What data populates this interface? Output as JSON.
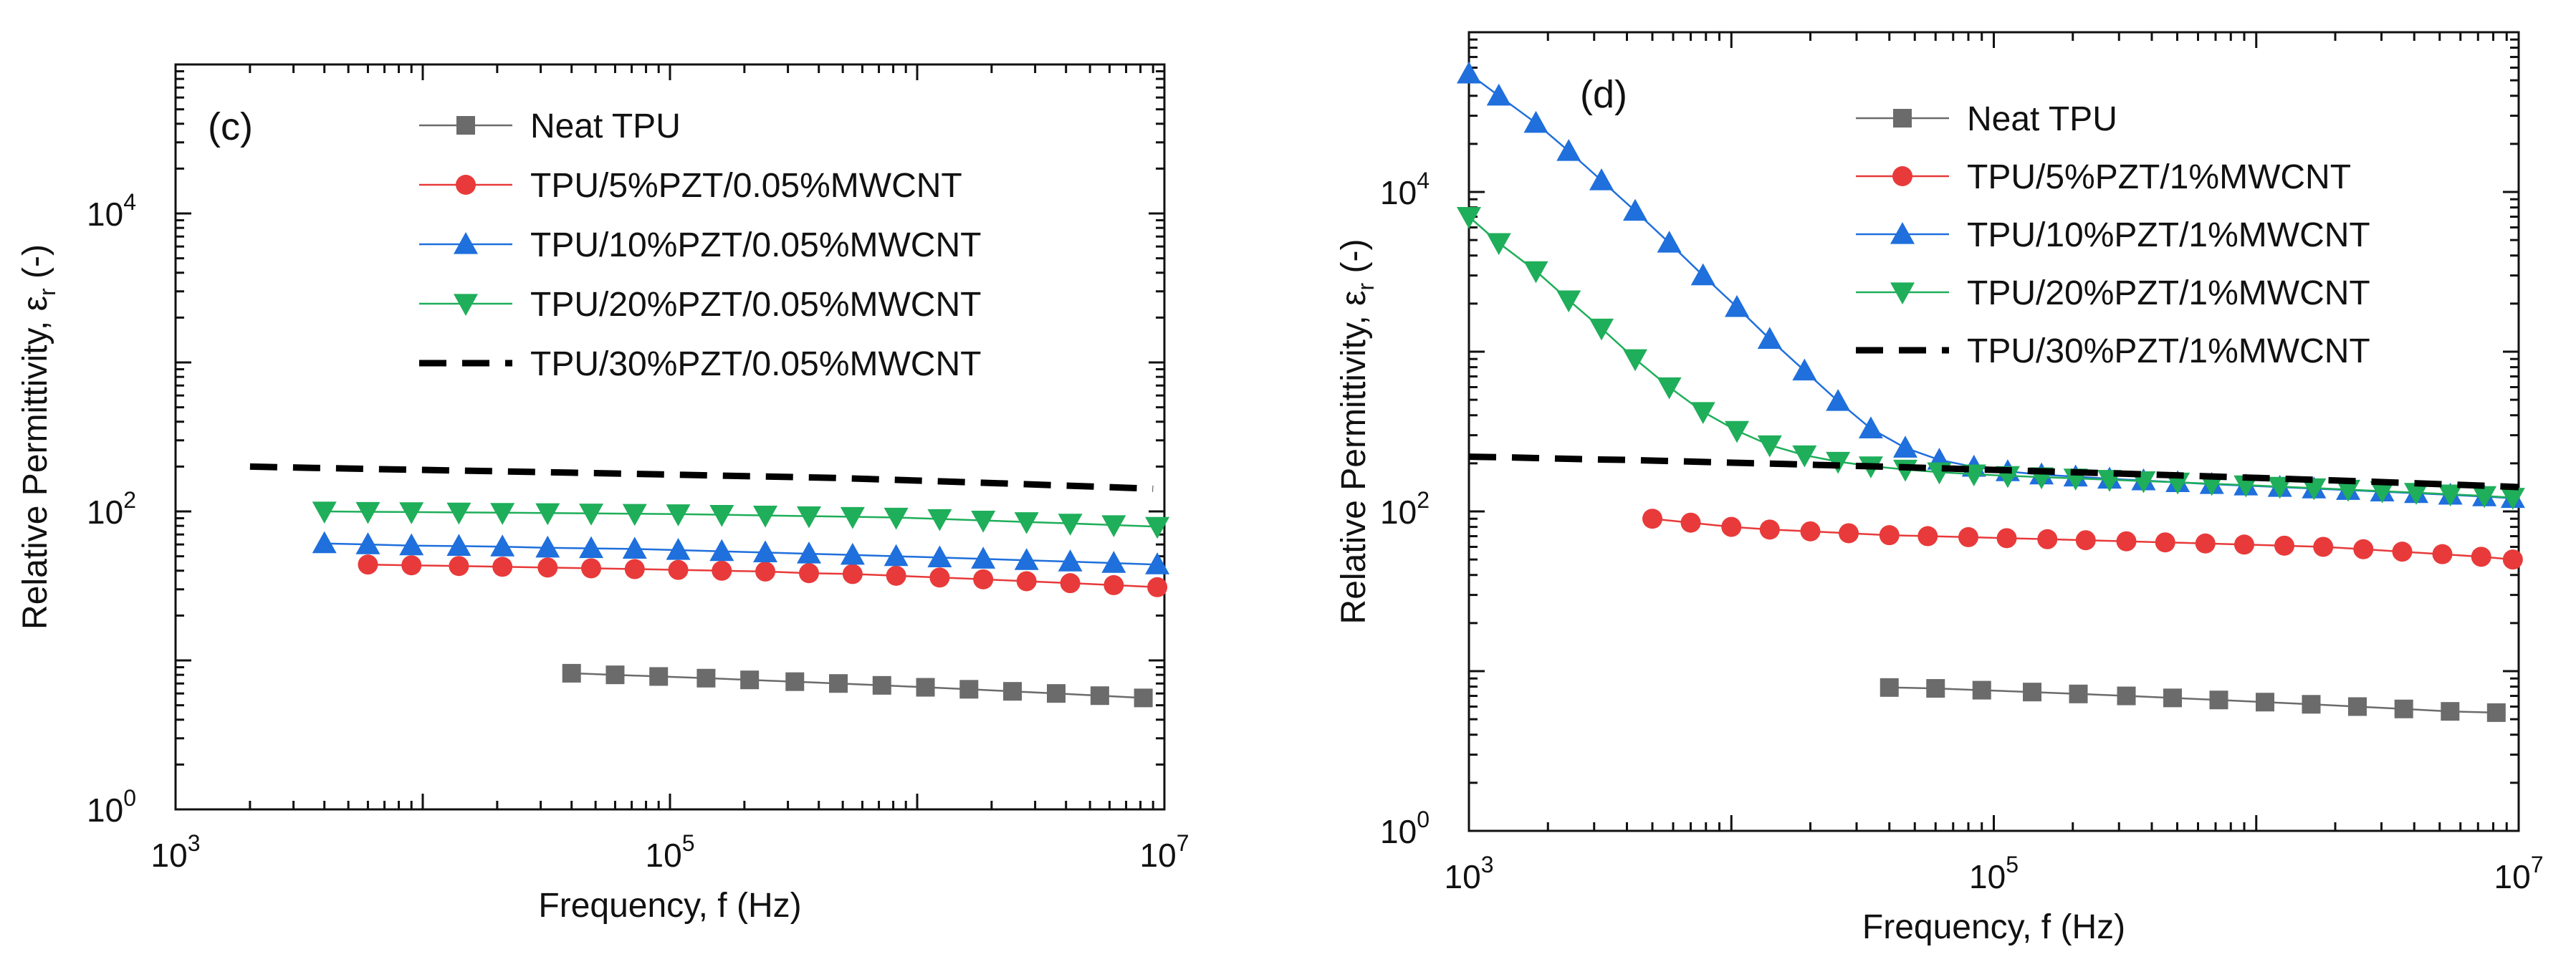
{
  "chart_data": [
    {
      "type": "line",
      "panel_label": "(c)",
      "xlabel": "Frequency, f (Hz)",
      "ylabel": "Relative Permittivity, ε",
      "ylabel_sub": "r",
      "ylabel_unit": " (-)",
      "xscale": "log",
      "yscale": "log",
      "xlim": [
        1000,
        10000000
      ],
      "ylim": [
        1,
        100000
      ],
      "x_ticks": [
        {
          "base": "10",
          "exp": "3",
          "value": 1000
        },
        {
          "base": "10",
          "exp": "5",
          "value": 100000
        },
        {
          "base": "10",
          "exp": "7",
          "value": 10000000
        }
      ],
      "y_ticks": [
        {
          "base": "10",
          "exp": "0",
          "value": 1
        },
        {
          "base": "10",
          "exp": "2",
          "value": 100
        },
        {
          "base": "10",
          "exp": "4",
          "value": 10000
        }
      ],
      "legend_position": "top-right",
      "series": [
        {
          "name": "Neat TPU",
          "color": "#6b6b6b",
          "marker": "square",
          "line": "solid",
          "x": [
            40000,
            60000,
            90000,
            140000,
            210000,
            320000,
            480000,
            720000,
            1080000,
            1620000,
            2430000,
            3650000,
            5480000,
            8220000
          ],
          "y": [
            8.2,
            8.0,
            7.8,
            7.6,
            7.4,
            7.2,
            7.0,
            6.8,
            6.6,
            6.4,
            6.2,
            6.0,
            5.8,
            5.6
          ]
        },
        {
          "name": "TPU/5%PZT/0.05%MWCNT",
          "color": "#e83a3a",
          "marker": "circle",
          "line": "solid",
          "x": [
            6000,
            9000,
            14000,
            21000,
            32000,
            48000,
            72000,
            108000,
            162000,
            243000,
            365000,
            548000,
            822000,
            1233000,
            1850000,
            2770000,
            4160000,
            6240000,
            9360000
          ],
          "y": [
            44,
            43.5,
            43,
            42.5,
            42,
            41.5,
            41,
            40.5,
            40,
            39.5,
            38.5,
            38,
            37,
            36,
            35,
            34,
            33,
            32,
            31
          ]
        },
        {
          "name": "TPU/10%PZT/0.05%MWCNT",
          "color": "#1f6fdc",
          "marker": "triangle-up",
          "line": "solid",
          "x": [
            4000,
            6000,
            9000,
            14000,
            21000,
            32000,
            48000,
            72000,
            108000,
            162000,
            243000,
            365000,
            548000,
            822000,
            1233000,
            1850000,
            2770000,
            4160000,
            6240000,
            9360000
          ],
          "y": [
            61,
            60,
            59,
            58.5,
            58,
            57,
            56.5,
            56,
            55,
            54,
            53,
            52,
            51,
            50,
            49,
            48,
            47,
            46,
            45,
            44
          ]
        },
        {
          "name": "TPU/20%PZT/0.05%MWCNT",
          "color": "#1fae5a",
          "marker": "triangle-down",
          "line": "solid",
          "x": [
            4000,
            6000,
            9000,
            14000,
            21000,
            32000,
            48000,
            72000,
            108000,
            162000,
            243000,
            365000,
            548000,
            822000,
            1233000,
            1850000,
            2770000,
            4160000,
            6240000,
            9360000
          ],
          "y": [
            100,
            99.5,
            99,
            98.5,
            98,
            97.5,
            97,
            96.5,
            96,
            95,
            94,
            93,
            92,
            91,
            89,
            87,
            85,
            83,
            81,
            79
          ]
        },
        {
          "name": "TPU/30%PZT/0.05%MWCNT",
          "color": "#000000",
          "marker": "none",
          "line": "dashed",
          "x": [
            2000,
            2600,
            3600,
            5000,
            7000,
            10000,
            14000,
            20000,
            28000,
            40000,
            56000,
            80000,
            112000,
            160000,
            224000,
            320000,
            450000,
            640000,
            900000,
            1280000,
            1800000,
            2560000,
            3600000,
            5120000,
            7200000,
            9000000
          ],
          "y": [
            200,
            198,
            196,
            194,
            192,
            190,
            188,
            186,
            184,
            182,
            180,
            178,
            176,
            174,
            172,
            170,
            168,
            165,
            162,
            159,
            156,
            153,
            150,
            147,
            144,
            142
          ]
        }
      ]
    },
    {
      "type": "line",
      "panel_label": "(d)",
      "xlabel": "Frequency, f (Hz)",
      "ylabel": "Relative Permittivity, ε",
      "ylabel_sub": "r",
      "ylabel_unit": " (-)",
      "xscale": "log",
      "yscale": "log",
      "xlim": [
        1000,
        10000000
      ],
      "ylim": [
        1,
        100000
      ],
      "x_ticks": [
        {
          "base": "10",
          "exp": "3",
          "value": 1000
        },
        {
          "base": "10",
          "exp": "5",
          "value": 100000
        },
        {
          "base": "10",
          "exp": "7",
          "value": 10000000
        }
      ],
      "y_ticks": [
        {
          "base": "10",
          "exp": "0",
          "value": 1
        },
        {
          "base": "10",
          "exp": "2",
          "value": 100
        },
        {
          "base": "10",
          "exp": "4",
          "value": 10000
        }
      ],
      "legend_position": "top-right",
      "series": [
        {
          "name": "Neat TPU",
          "color": "#6b6b6b",
          "marker": "square",
          "line": "solid",
          "x": [
            40000,
            60000,
            90000,
            140000,
            210000,
            320000,
            480000,
            720000,
            1080000,
            1620000,
            2430000,
            3650000,
            5480000,
            8220000
          ],
          "y": [
            7.9,
            7.8,
            7.6,
            7.4,
            7.2,
            7.0,
            6.8,
            6.6,
            6.4,
            6.2,
            6.0,
            5.8,
            5.6,
            5.5
          ]
        },
        {
          "name": "TPU/5%PZT/1%MWCNT",
          "color": "#e83a3a",
          "marker": "circle",
          "line": "solid",
          "x": [
            5000,
            7000,
            10000,
            14000,
            20000,
            28000,
            40000,
            56000,
            80000,
            112000,
            160000,
            224000,
            320000,
            450000,
            640000,
            900000,
            1280000,
            1800000,
            2560000,
            3600000,
            5120000,
            7200000,
            9500000
          ],
          "y": [
            90,
            85,
            80,
            77,
            75,
            73,
            71,
            70,
            69,
            68,
            67,
            66,
            65,
            64,
            63,
            62,
            61,
            60,
            58,
            56,
            54,
            52,
            50
          ]
        },
        {
          "name": "TPU/10%PZT/1%MWCNT",
          "color": "#1f6fdc",
          "marker": "triangle-up",
          "line": "solid",
          "x": [
            1000,
            1300,
            1800,
            2400,
            3200,
            4300,
            5800,
            7800,
            10500,
            14000,
            19000,
            25500,
            34000,
            46000,
            62000,
            84000,
            113000,
            152000,
            205000,
            276000,
            372000,
            502000,
            677000,
            913000,
            1230000,
            1660000,
            2240000,
            3020000,
            4070000,
            5490000,
            7400000,
            9500000
          ],
          "y": [
            55000,
            40000,
            27000,
            18000,
            11800,
            7600,
            4800,
            3000,
            1900,
            1200,
            760,
            490,
            330,
            250,
            210,
            190,
            178,
            170,
            165,
            160,
            156,
            152,
            148,
            145,
            142,
            139,
            136,
            133,
            130,
            127,
            124,
            121
          ]
        },
        {
          "name": "TPU/20%PZT/1%MWCNT",
          "color": "#1fae5a",
          "marker": "triangle-down",
          "line": "solid",
          "x": [
            1000,
            1300,
            1800,
            2400,
            3200,
            4300,
            5800,
            7800,
            10500,
            14000,
            19000,
            25500,
            34000,
            46000,
            62000,
            84000,
            113000,
            152000,
            205000,
            276000,
            372000,
            502000,
            677000,
            913000,
            1230000,
            1660000,
            2240000,
            3020000,
            4070000,
            5490000,
            7400000,
            9500000
          ],
          "y": [
            7000,
            4800,
            3200,
            2100,
            1400,
            900,
            600,
            420,
            320,
            260,
            225,
            205,
            192,
            183,
            176,
            171,
            167,
            164,
            161,
            158,
            155,
            152,
            149,
            146,
            143,
            140,
            137,
            134,
            131,
            128,
            125,
            122
          ]
        },
        {
          "name": "TPU/30%PZT/1%MWCNT",
          "color": "#000000",
          "marker": "none",
          "line": "dashed",
          "x": [
            1000,
            1400,
            2000,
            2800,
            4000,
            5600,
            8000,
            11200,
            16000,
            22400,
            32000,
            45000,
            64000,
            90000,
            128000,
            180000,
            256000,
            360000,
            512000,
            720000,
            1024000,
            1440000,
            2048000,
            2880000,
            4096000,
            5760000,
            8192000,
            10000000
          ],
          "y": [
            220,
            218,
            215,
            212,
            210,
            207,
            204,
            201,
            198,
            195,
            192,
            189,
            186,
            183,
            180,
            177,
            174,
            171,
            168,
            165,
            162,
            159,
            156,
            153,
            150,
            147,
            144,
            142
          ]
        }
      ]
    }
  ]
}
